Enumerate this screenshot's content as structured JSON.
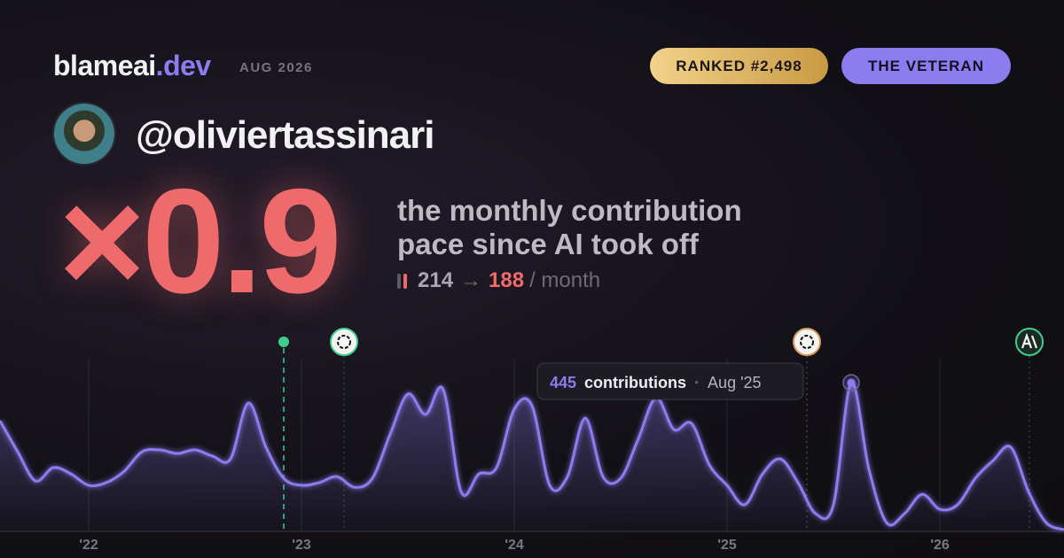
{
  "brand": {
    "name": "blameai",
    "tld": ".dev",
    "date": "AUG 2026"
  },
  "badges": {
    "rank": "RANKED #2,498",
    "title": "THE VETERAN"
  },
  "user": {
    "handle": "@oliviertassinari"
  },
  "headline": {
    "multiplier": "×0.9",
    "caption": "the monthly contribution pace since AI took off",
    "before": 214,
    "arrow": "→",
    "after": 188,
    "unit": "/ month"
  },
  "chart_data": {
    "type": "line",
    "x": [
      "2021-08",
      "2021-09",
      "2021-10",
      "2021-11",
      "2021-12",
      "2022-01",
      "2022-02",
      "2022-03",
      "2022-04",
      "2022-05",
      "2022-06",
      "2022-07",
      "2022-08",
      "2022-09",
      "2022-10",
      "2022-11",
      "2022-12",
      "2023-01",
      "2023-02",
      "2023-03",
      "2023-04",
      "2023-05",
      "2023-06",
      "2023-07",
      "2023-08",
      "2023-09",
      "2023-10",
      "2023-11",
      "2023-12",
      "2024-01",
      "2024-02",
      "2024-03",
      "2024-04",
      "2024-05",
      "2024-06",
      "2024-07",
      "2024-08",
      "2024-09",
      "2024-10",
      "2024-11",
      "2024-12",
      "2025-01",
      "2025-02",
      "2025-03",
      "2025-04",
      "2025-05",
      "2025-06",
      "2025-07",
      "2025-08",
      "2025-09",
      "2025-10",
      "2025-11",
      "2025-12",
      "2026-01",
      "2026-02",
      "2026-03",
      "2026-04",
      "2026-05",
      "2026-06",
      "2026-07",
      "2026-08"
    ],
    "series": [
      {
        "name": "contributions",
        "color": "#8b7cf0",
        "values": [
          331,
          238,
          151,
          191,
          172,
          138,
          146,
          180,
          238,
          244,
          233,
          244,
          225,
          217,
          384,
          252,
          159,
          138,
          146,
          164,
          132,
          159,
          291,
          411,
          350,
          424,
          119,
          172,
          191,
          366,
          376,
          138,
          164,
          339,
          164,
          159,
          278,
          400,
          305,
          323,
          199,
          138,
          80,
          172,
          217,
          146,
          53,
          80,
          445,
          186,
          26,
          53,
          111,
          66,
          80,
          159,
          212,
          252,
          119,
          26,
          5
        ]
      }
    ],
    "xlim": [
      "2021-08",
      "2026-08"
    ],
    "ylim": [
      0,
      530
    ],
    "xticks": [
      {
        "value": "2022-01",
        "label": "'22"
      },
      {
        "value": "2023-01",
        "label": "'23"
      },
      {
        "value": "2024-01",
        "label": "'24"
      },
      {
        "value": "2025-01",
        "label": "'25"
      },
      {
        "value": "2026-01",
        "label": "'26"
      }
    ],
    "grid": true,
    "tooltip": {
      "value": 445,
      "unit": "contributions",
      "separator": "·",
      "date": "Aug '25"
    }
  }
}
